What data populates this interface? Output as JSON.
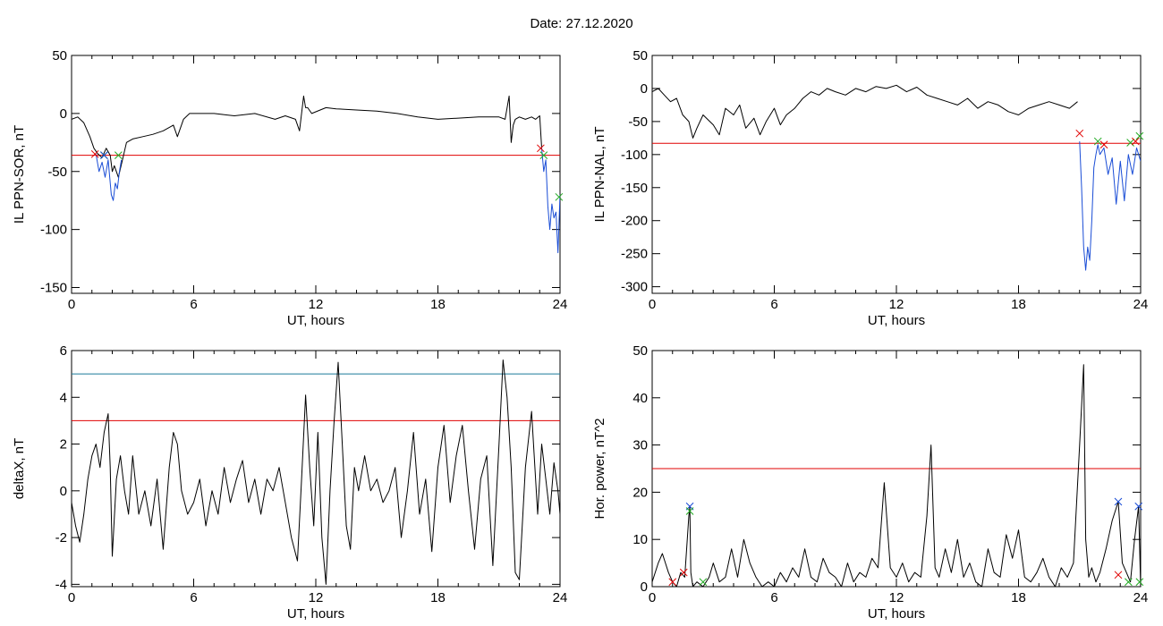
{
  "page": {
    "title": "Date:  27.12.2020"
  },
  "chart_data": [
    {
      "id": "sor",
      "type": "line",
      "xlabel": "UT, hours",
      "ylabel": "IL PPN-SOR, nT",
      "xlim": [
        0,
        24
      ],
      "ylim": [
        -155,
        50
      ],
      "xticks": [
        0,
        6,
        12,
        18,
        24
      ],
      "yticks": [
        -150,
        -100,
        -50,
        0,
        50
      ],
      "series": [
        {
          "color": "#000000",
          "x": [
            0,
            0.3,
            0.6,
            0.9,
            1.1,
            1.3,
            1.5,
            1.7,
            1.9,
            2.0,
            2.1,
            2.3,
            2.5,
            2.7,
            3.0,
            3.5,
            4.0,
            4.5,
            5.0,
            5.2,
            5.5,
            5.8,
            6.0,
            7,
            8,
            9,
            10,
            10.5,
            11.0,
            11.2,
            11.4,
            11.5,
            11.6,
            11.8,
            12.5,
            13,
            14,
            15,
            16,
            17,
            18,
            19,
            20,
            21,
            21.3,
            21.5,
            21.6,
            21.7,
            21.8,
            22.0,
            22.3,
            22.6,
            22.8,
            23.0,
            23.1
          ],
          "y": [
            -5,
            -3,
            -8,
            -20,
            -30,
            -35,
            -38,
            -30,
            -36,
            -50,
            -45,
            -55,
            -40,
            -25,
            -22,
            -20,
            -18,
            -15,
            -10,
            -20,
            -5,
            0,
            0,
            0,
            -2,
            0,
            -5,
            -2,
            -5,
            -15,
            15,
            5,
            5,
            0,
            5,
            4,
            3,
            2,
            0,
            -3,
            -5,
            -4,
            -3,
            -3,
            -5,
            15,
            -25,
            -10,
            -5,
            -3,
            -5,
            -3,
            -5,
            -2,
            -30
          ]
        },
        {
          "color": "#1a4dd6",
          "x": [
            1.2,
            1.35,
            1.5,
            1.65,
            1.8,
            1.95,
            2.05,
            2.15,
            2.25,
            2.35,
            2.45
          ],
          "y": [
            -35,
            -50,
            -42,
            -55,
            -40,
            -70,
            -75,
            -60,
            -65,
            -50,
            -40
          ]
        },
        {
          "color": "#1a4dd6",
          "x": [
            23.1,
            23.2,
            23.3,
            23.4,
            23.5,
            23.6,
            23.7,
            23.8,
            23.9,
            24.0
          ],
          "y": [
            -30,
            -50,
            -40,
            -80,
            -100,
            -78,
            -90,
            -85,
            -120,
            -70
          ]
        }
      ],
      "thresholds": [
        {
          "value": -36,
          "color": "#e00000"
        }
      ],
      "markers": [
        {
          "x": 1.15,
          "y": -35,
          "symbol": "x",
          "color": "#e00000"
        },
        {
          "x": 1.6,
          "y": -36,
          "symbol": "x",
          "color": "#22aa22"
        },
        {
          "x": 1.6,
          "y": -36,
          "symbol": "x",
          "color": "#1a4dd6"
        },
        {
          "x": 2.3,
          "y": -36,
          "symbol": "x",
          "color": "#22aa22"
        },
        {
          "x": 23.05,
          "y": -30,
          "symbol": "x",
          "color": "#e00000"
        },
        {
          "x": 23.2,
          "y": -36,
          "symbol": "x",
          "color": "#22aa22"
        },
        {
          "x": 23.95,
          "y": -72,
          "symbol": "x",
          "color": "#22aa22"
        }
      ]
    },
    {
      "id": "nal",
      "type": "line",
      "xlabel": "UT, hours",
      "ylabel": "IL PPN-NAL, nT",
      "xlim": [
        0,
        24
      ],
      "ylim": [
        -310,
        50
      ],
      "xticks": [
        0,
        6,
        12,
        18,
        24
      ],
      "yticks": [
        -300,
        -250,
        -200,
        -150,
        -100,
        -50,
        0,
        50
      ],
      "series": [
        {
          "color": "#000000",
          "x": [
            0,
            0.3,
            0.6,
            0.9,
            1.2,
            1.5,
            1.8,
            2.0,
            2.2,
            2.5,
            3.0,
            3.3,
            3.6,
            4.0,
            4.3,
            4.6,
            5.0,
            5.3,
            5.6,
            6.0,
            6.3,
            6.6,
            7.0,
            7.4,
            7.8,
            8.2,
            8.6,
            9.0,
            9.5,
            10,
            10.5,
            11,
            11.5,
            12,
            12.5,
            13,
            13.5,
            14,
            14.5,
            15,
            15.5,
            16,
            16.5,
            17,
            17.5,
            18,
            18.5,
            19,
            19.5,
            20,
            20.5,
            20.9
          ],
          "y": [
            -5,
            0,
            -10,
            -20,
            -15,
            -40,
            -50,
            -75,
            -60,
            -40,
            -55,
            -70,
            -30,
            -40,
            -25,
            -60,
            -45,
            -70,
            -50,
            -30,
            -55,
            -40,
            -30,
            -15,
            -5,
            -10,
            0,
            -5,
            -10,
            0,
            -5,
            3,
            0,
            5,
            -5,
            2,
            -10,
            -15,
            -20,
            -25,
            -15,
            -30,
            -20,
            -25,
            -35,
            -40,
            -30,
            -25,
            -20,
            -25,
            -30,
            -20
          ]
        },
        {
          "color": "#1a4dd6",
          "x": [
            21.0,
            21.1,
            21.2,
            21.3,
            21.4,
            21.5,
            21.6,
            21.7,
            21.8,
            21.9,
            22.0,
            22.2,
            22.4,
            22.6,
            22.8,
            23.0,
            23.2,
            23.4,
            23.6,
            23.8,
            24.0
          ],
          "y": [
            -80,
            -150,
            -240,
            -275,
            -240,
            -260,
            -200,
            -120,
            -100,
            -85,
            -100,
            -90,
            -130,
            -105,
            -175,
            -110,
            -170,
            -100,
            -130,
            -90,
            -110
          ]
        }
      ],
      "thresholds": [
        {
          "value": -83,
          "color": "#e00000"
        }
      ],
      "markers": [
        {
          "x": 21.0,
          "y": -68,
          "symbol": "x",
          "color": "#e00000"
        },
        {
          "x": 21.9,
          "y": -80,
          "symbol": "x",
          "color": "#22aa22"
        },
        {
          "x": 22.2,
          "y": -85,
          "symbol": "x",
          "color": "#e00000"
        },
        {
          "x": 23.5,
          "y": -82,
          "symbol": "x",
          "color": "#22aa22"
        },
        {
          "x": 23.75,
          "y": -80,
          "symbol": "x",
          "color": "#e00000"
        },
        {
          "x": 23.95,
          "y": -72,
          "symbol": "x",
          "color": "#22aa22"
        }
      ]
    },
    {
      "id": "deltax",
      "type": "line",
      "xlabel": "UT, hours",
      "ylabel": "deltaX, nT",
      "xlim": [
        0,
        24
      ],
      "ylim": [
        -4.1,
        6
      ],
      "xticks": [
        0,
        6,
        12,
        18,
        24
      ],
      "yticks": [
        -4,
        -2,
        0,
        2,
        4,
        6
      ],
      "series": [
        {
          "color": "#000000",
          "x": [
            0,
            0.2,
            0.4,
            0.6,
            0.8,
            1.0,
            1.2,
            1.4,
            1.6,
            1.8,
            1.9,
            2.0,
            2.2,
            2.4,
            2.6,
            2.8,
            3.0,
            3.3,
            3.6,
            3.9,
            4.2,
            4.5,
            4.8,
            5.0,
            5.2,
            5.4,
            5.7,
            6.0,
            6.3,
            6.6,
            6.9,
            7.2,
            7.5,
            7.8,
            8.1,
            8.4,
            8.7,
            9.0,
            9.3,
            9.6,
            9.9,
            10.2,
            10.5,
            10.8,
            11.1,
            11.3,
            11.5,
            11.7,
            11.9,
            12.1,
            12.3,
            12.5,
            12.7,
            12.9,
            13.1,
            13.3,
            13.5,
            13.7,
            13.9,
            14.1,
            14.4,
            14.7,
            15.0,
            15.3,
            15.6,
            15.9,
            16.2,
            16.5,
            16.8,
            17.1,
            17.4,
            17.7,
            18.0,
            18.3,
            18.6,
            18.9,
            19.2,
            19.5,
            19.8,
            20.1,
            20.4,
            20.7,
            21.0,
            21.2,
            21.4,
            21.6,
            21.8,
            22.0,
            22.3,
            22.6,
            22.9,
            23.1,
            23.3,
            23.5,
            23.7,
            23.9,
            24.0
          ],
          "y": [
            -0.5,
            -1.5,
            -2.2,
            -1.0,
            0.5,
            1.5,
            2.0,
            1.0,
            2.5,
            3.3,
            1.0,
            -2.8,
            0.5,
            1.5,
            0.0,
            -1.0,
            1.5,
            -1.0,
            0.0,
            -1.5,
            0.5,
            -2.5,
            1.0,
            2.5,
            2.0,
            0.0,
            -1.0,
            -0.5,
            0.5,
            -1.5,
            0.0,
            -1.0,
            1.0,
            -0.5,
            0.5,
            1.3,
            -0.5,
            0.5,
            -1.0,
            0.5,
            0.0,
            1.0,
            -0.5,
            -2.0,
            -3.0,
            0.5,
            4.1,
            1.0,
            -1.5,
            2.5,
            -2.0,
            -4.0,
            0.0,
            3.0,
            5.5,
            2.0,
            -1.5,
            -2.5,
            1.0,
            0.0,
            1.5,
            0.0,
            0.5,
            -0.5,
            0.0,
            1.0,
            -2.0,
            0.0,
            2.5,
            -1.0,
            0.5,
            -2.6,
            1.0,
            2.8,
            -0.5,
            1.5,
            2.8,
            0.0,
            -2.5,
            0.5,
            1.5,
            -3.2,
            2.0,
            5.6,
            4.0,
            1.0,
            -3.5,
            -3.8,
            1.0,
            3.4,
            -1.0,
            2.0,
            0.5,
            -1.0,
            1.2,
            0.0,
            -1.0
          ]
        }
      ],
      "thresholds": [
        {
          "value": 5,
          "color": "#1a7a9a"
        },
        {
          "value": 3,
          "color": "#e00000"
        }
      ],
      "markers": []
    },
    {
      "id": "power",
      "type": "line",
      "xlabel": "UT, hours",
      "ylabel": "Hor. power, nT^2",
      "xlim": [
        0,
        24
      ],
      "ylim": [
        0,
        50
      ],
      "xticks": [
        0,
        6,
        12,
        18,
        24
      ],
      "yticks": [
        0,
        10,
        20,
        30,
        40,
        50
      ],
      "series": [
        {
          "color": "#000000",
          "x": [
            0,
            0.3,
            0.5,
            0.8,
            1.0,
            1.2,
            1.4,
            1.6,
            1.8,
            1.85,
            1.9,
            2.0,
            2.2,
            2.5,
            2.8,
            3.0,
            3.3,
            3.6,
            3.9,
            4.2,
            4.5,
            4.8,
            5.1,
            5.4,
            5.7,
            6.0,
            6.3,
            6.6,
            6.9,
            7.2,
            7.5,
            7.8,
            8.1,
            8.4,
            8.7,
            9.0,
            9.3,
            9.6,
            9.9,
            10.2,
            10.5,
            10.8,
            11.1,
            11.4,
            11.7,
            12.0,
            12.3,
            12.6,
            12.9,
            13.2,
            13.5,
            13.7,
            13.9,
            14.1,
            14.4,
            14.7,
            15.0,
            15.3,
            15.6,
            15.9,
            16.2,
            16.5,
            16.8,
            17.1,
            17.4,
            17.7,
            18.0,
            18.3,
            18.6,
            18.9,
            19.2,
            19.5,
            19.8,
            20.1,
            20.4,
            20.7,
            21.0,
            21.2,
            21.3,
            21.45,
            21.6,
            21.8,
            22.0,
            22.3,
            22.6,
            22.9,
            23.1,
            23.3,
            23.5,
            23.7,
            23.9,
            24.0
          ],
          "y": [
            1,
            5,
            7,
            3,
            1,
            0,
            3,
            2,
            15,
            17,
            3,
            0,
            1,
            0,
            2,
            5,
            1,
            2,
            8,
            2,
            10,
            5,
            2,
            0,
            1,
            0,
            3,
            1,
            4,
            2,
            8,
            2,
            1,
            6,
            3,
            2,
            0,
            5,
            1,
            3,
            2,
            6,
            4,
            22,
            4,
            2,
            5,
            1,
            3,
            2,
            15,
            30,
            4,
            2,
            8,
            3,
            10,
            2,
            5,
            1,
            0,
            8,
            3,
            2,
            11,
            6,
            12,
            2,
            1,
            3,
            6,
            2,
            0,
            4,
            2,
            5,
            30,
            47,
            10,
            2,
            4,
            1,
            3,
            8,
            14,
            18,
            5,
            3,
            1,
            10,
            17,
            0
          ]
        }
      ],
      "thresholds": [
        {
          "value": 25,
          "color": "#e00000"
        }
      ],
      "markers": [
        {
          "x": 1.0,
          "y": 1,
          "symbol": "x",
          "color": "#e00000"
        },
        {
          "x": 1.55,
          "y": 3,
          "symbol": "x",
          "color": "#e00000"
        },
        {
          "x": 1.85,
          "y": 17,
          "symbol": "x",
          "color": "#1a4dd6"
        },
        {
          "x": 1.85,
          "y": 16,
          "symbol": "x",
          "color": "#22aa22"
        },
        {
          "x": 2.5,
          "y": 1,
          "symbol": "x",
          "color": "#22aa22"
        },
        {
          "x": 22.9,
          "y": 18,
          "symbol": "x",
          "color": "#1a4dd6"
        },
        {
          "x": 22.9,
          "y": 2.5,
          "symbol": "x",
          "color": "#e00000"
        },
        {
          "x": 23.4,
          "y": 1,
          "symbol": "x",
          "color": "#22aa22"
        },
        {
          "x": 23.9,
          "y": 17,
          "symbol": "x",
          "color": "#1a4dd6"
        },
        {
          "x": 23.95,
          "y": 1,
          "symbol": "x",
          "color": "#22aa22"
        }
      ]
    }
  ]
}
